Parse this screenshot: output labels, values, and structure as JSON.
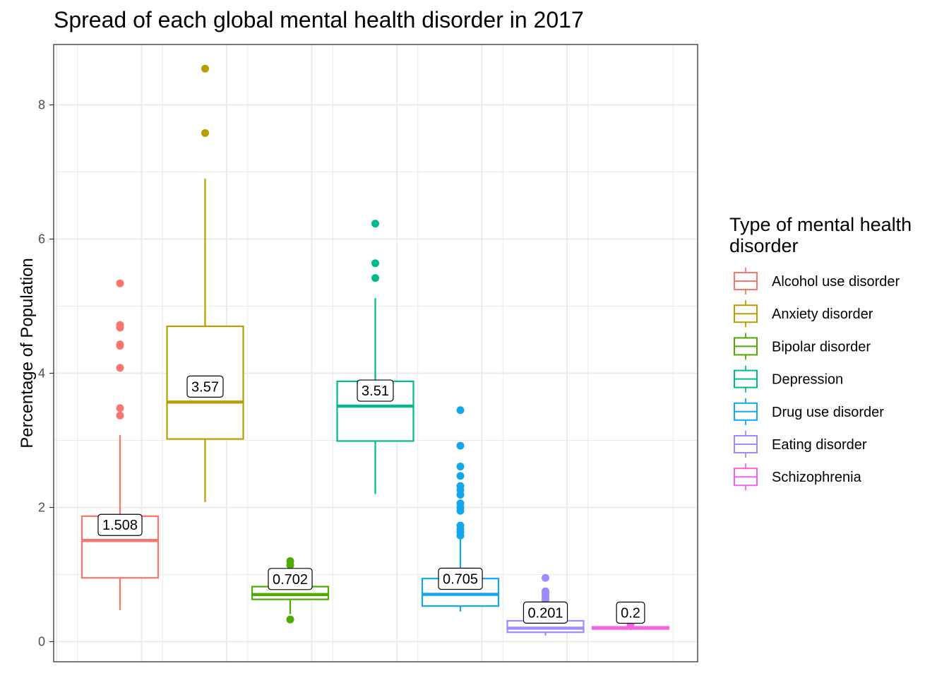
{
  "chart_data": {
    "type": "boxplot",
    "title": "Spread of each global mental health disorder in 2017",
    "xlabel": "",
    "ylabel": "Percentage of Population",
    "ylim": [
      -0.3,
      8.9
    ],
    "yticks": [
      0,
      2,
      4,
      6,
      8
    ],
    "grid": true,
    "legend": {
      "title_lines": [
        "Type of mental health",
        "disorder"
      ],
      "position": "right"
    },
    "series": [
      {
        "name": "Alcohol use disorder",
        "color": "#F8766D",
        "q1": 0.95,
        "median": 1.508,
        "q3": 1.87,
        "whisker_low": 0.47,
        "whisker_high": 3.08,
        "outliers": [
          3.37,
          3.48,
          4.08,
          4.41,
          4.43,
          4.68,
          4.72,
          5.34
        ],
        "label": "1.508"
      },
      {
        "name": "Anxiety disorder",
        "color": "#B79F00",
        "q1": 3.02,
        "median": 3.57,
        "q3": 4.7,
        "whisker_low": 2.08,
        "whisker_high": 6.9,
        "outliers": [
          7.58,
          8.54
        ],
        "label": "3.57"
      },
      {
        "name": "Bipolar disorder",
        "color": "#4DAA00",
        "q1": 0.63,
        "median": 0.702,
        "q3": 0.82,
        "whisker_low": 0.41,
        "whisker_high": 1.0,
        "outliers": [
          0.33,
          1.14,
          1.2
        ],
        "label": "0.702"
      },
      {
        "name": "Depression",
        "color": "#00BA8E",
        "q1": 2.99,
        "median": 3.51,
        "q3": 3.88,
        "whisker_low": 2.2,
        "whisker_high": 5.12,
        "outliers": [
          5.42,
          5.64,
          6.23
        ],
        "label": "3.51"
      },
      {
        "name": "Drug use disorder",
        "color": "#13A8E8",
        "q1": 0.53,
        "median": 0.705,
        "q3": 0.94,
        "whisker_low": 0.45,
        "whisker_high": 1.55,
        "outliers": [
          1.58,
          1.63,
          1.68,
          1.73,
          1.95,
          2.0,
          2.06,
          2.19,
          2.26,
          2.32,
          2.47,
          2.61,
          2.92,
          3.45
        ],
        "label": "0.705"
      },
      {
        "name": "Eating disorder",
        "color": "#9C8CFF",
        "q1": 0.14,
        "median": 0.201,
        "q3": 0.31,
        "whisker_low": 0.09,
        "whisker_high": 0.55,
        "outliers": [
          0.62,
          0.66,
          0.69,
          0.73,
          0.75,
          0.95
        ],
        "label": "0.201"
      },
      {
        "name": "Schizophrenia",
        "color": "#F564E3",
        "q1": 0.19,
        "median": 0.2,
        "q3": 0.22,
        "whisker_low": 0.17,
        "whisker_high": 0.24,
        "outliers": [
          0.25,
          0.27
        ],
        "label": "0.2"
      }
    ]
  }
}
